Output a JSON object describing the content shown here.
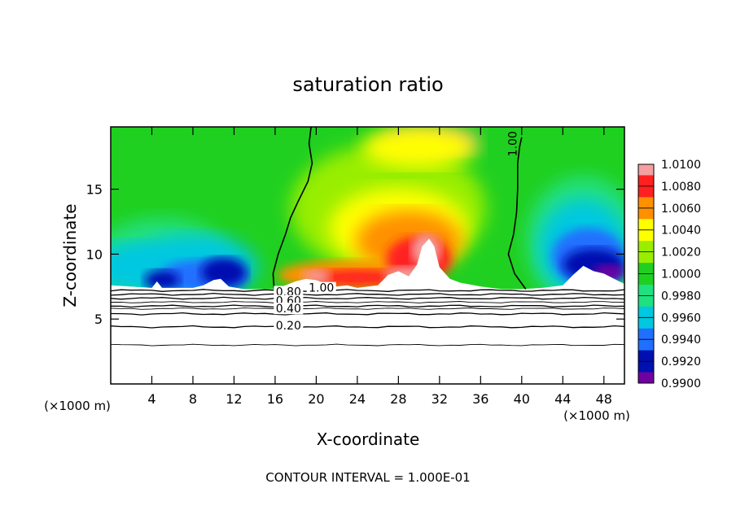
{
  "chart_data": {
    "type": "heatmap",
    "title": "saturation ratio",
    "xlabel": "X-coordinate",
    "ylabel": "Z-coordinate",
    "x_unit_label": "(×1000 m)",
    "x_ticks": [
      4,
      8,
      12,
      16,
      20,
      24,
      28,
      32,
      36,
      40,
      44,
      48
    ],
    "y_ticks": [
      5,
      10,
      15
    ],
    "xlim": [
      0,
      50
    ],
    "ylim": [
      0,
      19.8
    ],
    "footer": "CONTOUR INTERVAL = 1.000E-01",
    "colorbar": {
      "labels": [
        "1.0100",
        "1.0080",
        "1.0060",
        "1.0040",
        "1.0020",
        "1.0000",
        "0.9980",
        "0.9960",
        "0.9940",
        "0.9920",
        "0.9900"
      ],
      "colors": [
        "#f4a0a0",
        "#ff2020",
        "#ff9000",
        "#ffff00",
        "#99ee00",
        "#20d020",
        "#20e080",
        "#00c8e0",
        "#2070ff",
        "#0010b0",
        "#7000a0"
      ]
    },
    "contour_labels": [
      {
        "text": "1.00",
        "x": 39.5,
        "z": 18.5,
        "vertical": true
      },
      {
        "text": "1.00",
        "x": 20.5,
        "z": 7.1
      },
      {
        "text": "0.80",
        "x": 17.3,
        "z": 6.8
      },
      {
        "text": "0.60",
        "x": 17.3,
        "z": 6.1
      },
      {
        "text": "0.40",
        "x": 17.3,
        "z": 5.5
      },
      {
        "text": "0.20",
        "x": 17.3,
        "z": 4.2
      }
    ],
    "contour_levels_below": [
      {
        "level": 0.2,
        "z": 4.4
      },
      {
        "level": 0.4,
        "z": 5.4
      },
      {
        "level": 0.6,
        "z": 6.0
      },
      {
        "level": 0.8,
        "z": 6.6
      },
      {
        "level": 0.9,
        "z": 6.9
      },
      {
        "level": 1.0,
        "z": 7.2
      }
    ],
    "contour_extra_lines": [
      {
        "z": 3.0
      },
      {
        "z": 5.8
      },
      {
        "z": 6.3
      }
    ],
    "contour_1_0_left": [
      [
        15.9,
        7.3
      ],
      [
        15.8,
        8.5
      ],
      [
        16.3,
        10.0
      ],
      [
        17.0,
        11.5
      ],
      [
        17.5,
        12.8
      ],
      [
        18.2,
        14.0
      ],
      [
        19.2,
        15.6
      ],
      [
        19.6,
        17.0
      ],
      [
        19.3,
        18.5
      ],
      [
        19.5,
        19.8
      ]
    ],
    "contour_1_0_right": [
      [
        40.4,
        7.3
      ],
      [
        39.3,
        8.5
      ],
      [
        38.7,
        10.0
      ],
      [
        39.2,
        11.5
      ],
      [
        39.5,
        13.2
      ],
      [
        39.6,
        15.0
      ],
      [
        39.6,
        17.0
      ],
      [
        39.8,
        18.3
      ],
      [
        40.0,
        19.0
      ]
    ],
    "terrain_top": [
      [
        0,
        7.6
      ],
      [
        2,
        7.5
      ],
      [
        4,
        7.4
      ],
      [
        4.5,
        7.9
      ],
      [
        5,
        7.4
      ],
      [
        6,
        7.4
      ],
      [
        8,
        7.4
      ],
      [
        9,
        7.6
      ],
      [
        10,
        8.0
      ],
      [
        10.7,
        8.1
      ],
      [
        11.5,
        7.5
      ],
      [
        13,
        7.3
      ],
      [
        15,
        7.3
      ],
      [
        16,
        7.3
      ],
      [
        17,
        7.6
      ],
      [
        18,
        7.9
      ],
      [
        19,
        8.1
      ],
      [
        20,
        8.0
      ],
      [
        21,
        7.7
      ],
      [
        22,
        7.5
      ],
      [
        23,
        7.6
      ],
      [
        24,
        7.4
      ],
      [
        25,
        7.5
      ],
      [
        26,
        7.6
      ],
      [
        27,
        8.4
      ],
      [
        28,
        8.7
      ],
      [
        29,
        8.3
      ],
      [
        29.8,
        9.2
      ],
      [
        30.3,
        10.6
      ],
      [
        31,
        11.2
      ],
      [
        31.5,
        10.6
      ],
      [
        32,
        9.0
      ],
      [
        33,
        8.1
      ],
      [
        34,
        7.8
      ],
      [
        36,
        7.5
      ],
      [
        38,
        7.3
      ],
      [
        40,
        7.3
      ],
      [
        42,
        7.4
      ],
      [
        44,
        7.6
      ],
      [
        45,
        8.4
      ],
      [
        46,
        9.1
      ],
      [
        47,
        8.7
      ],
      [
        48,
        8.5
      ],
      [
        49,
        8.1
      ],
      [
        50,
        7.7
      ]
    ],
    "data_range_z_min": 7.3,
    "data_range_z_max": 19.8
  }
}
